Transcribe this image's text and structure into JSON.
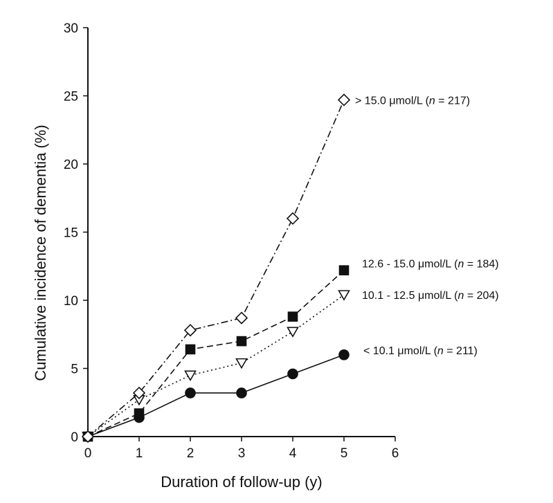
{
  "chart_data": {
    "type": "line",
    "title": "",
    "xlabel": "Duration of follow-up (y)",
    "ylabel": "Cumulative incidence of dementia (%)",
    "xlim": [
      0,
      6
    ],
    "ylim": [
      0,
      30
    ],
    "x_ticks": [
      "0",
      "1",
      "2",
      "3",
      "4",
      "5",
      "6"
    ],
    "y_ticks": [
      "0",
      "5",
      "10",
      "15",
      "20",
      "25",
      "30"
    ],
    "grid": false,
    "x": [
      0,
      1,
      2,
      3,
      4,
      5
    ],
    "series": [
      {
        "name": "> 15.0 μmol/L (n = 217)",
        "label_parts": [
          "> 15.0 μmol/L (",
          "n",
          " = 217)"
        ],
        "marker": "diamond-open",
        "line_style": "dash-dot",
        "values": [
          0,
          3.2,
          7.8,
          8.7,
          16.0,
          24.7
        ]
      },
      {
        "name": "12.6 - 15.0 μmol/L (n = 184)",
        "label_parts": [
          "12.6 - 15.0 μmol/L (",
          "n",
          " = 184)"
        ],
        "marker": "square-filled",
        "line_style": "dashed",
        "values": [
          0,
          1.7,
          6.4,
          7.0,
          8.8,
          12.2
        ]
      },
      {
        "name": "10.1 - 12.5 μmol/L (n = 204)",
        "label_parts": [
          "10.1 - 12.5 μmol/L (",
          "n",
          " = 204)"
        ],
        "marker": "triangle-down-open",
        "line_style": "dotted",
        "values": [
          0,
          2.7,
          4.5,
          5.4,
          7.7,
          10.4
        ]
      },
      {
        "name": "< 10.1 μmol/L (n = 211)",
        "label_parts": [
          "< 10.1 μmol/L (",
          "n",
          " = 211)"
        ],
        "marker": "circle-filled",
        "line_style": "solid",
        "values": [
          0,
          1.4,
          3.2,
          3.2,
          4.6,
          6.0
        ]
      }
    ]
  }
}
